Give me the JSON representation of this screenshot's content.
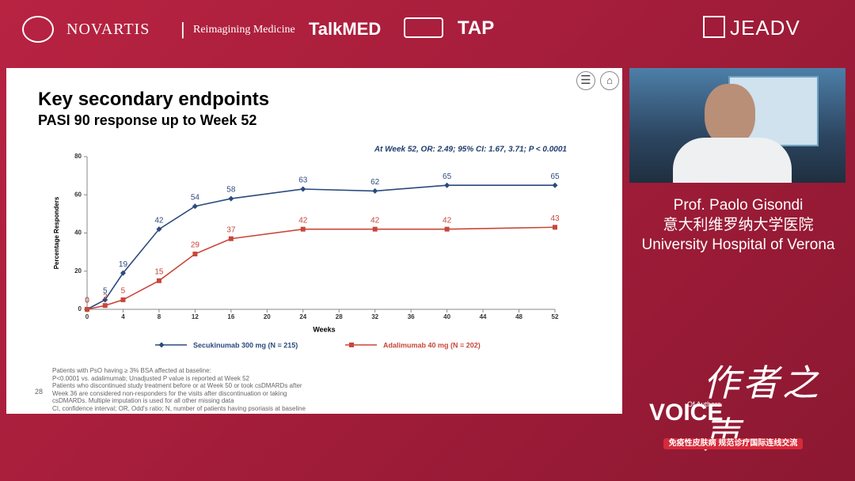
{
  "header": {
    "brand": "NOVARTIS",
    "tagline": "Reimagining Medicine",
    "partners": [
      "TalkMED",
      "TAP",
      "JEADV"
    ]
  },
  "speaker": {
    "name": "Prof. Paolo Gisondi",
    "affiliation_cn": "意大利维罗纳大学医院",
    "affiliation": "University Hospital of Verona"
  },
  "slide": {
    "page_number": "28",
    "footnotes": [
      "Patients with PsO having ≥ 3% BSA affected at baseline:",
      "P<0.0001 vs. adalimumab; Unadjusted P value is reported at Week 52",
      "Patients who discontinued study treatment before or at Week 50 or took csDMARDs after",
      "Week 36 are considered non-responders for the visits after discontinuation or taking",
      "csDMARDs. Multiple imputation is used for all other missing data",
      "CI, confidence interval; OR, Odd's ratio; N, number of patients having psoriasis at baseline"
    ]
  },
  "branding": {
    "title_cn": "作者之声",
    "title": "VOICE",
    "subtitle": "Of Authors",
    "banner": "免疫性皮肤病 规范诊疗国际连线交流"
  },
  "chart_data": {
    "type": "line",
    "title": "Key secondary endpoints",
    "subtitle": "PASI 90 response up to Week 52",
    "annotation": "At Week 52, OR: 2.49; 95% CI: 1.67, 3.71; P < 0.0001",
    "x_label": "Weeks",
    "y_label": "Percentage Responders",
    "x": [
      0,
      2,
      4,
      8,
      12,
      16,
      24,
      32,
      40,
      52
    ],
    "series": [
      {
        "name": "Secukinumab 300 mg (N = 215)",
        "color": "#2b4a7e",
        "marker": "diamond",
        "values": [
          0,
          5,
          19,
          42,
          54,
          58,
          63,
          62,
          65,
          65
        ]
      },
      {
        "name": "Adalimumab 40 mg (N = 202)",
        "color": "#c8473a",
        "marker": "square",
        "values": [
          0,
          2,
          5,
          15,
          29,
          37,
          42,
          42,
          42,
          43
        ]
      }
    ],
    "xlim": [
      0,
      52
    ],
    "xticks": [
      0,
      4,
      8,
      12,
      16,
      20,
      24,
      28,
      32,
      36,
      40,
      44,
      48,
      52
    ],
    "ylim": [
      0,
      80
    ],
    "yticks": [
      0,
      20,
      40,
      60,
      80
    ],
    "grid": false
  }
}
